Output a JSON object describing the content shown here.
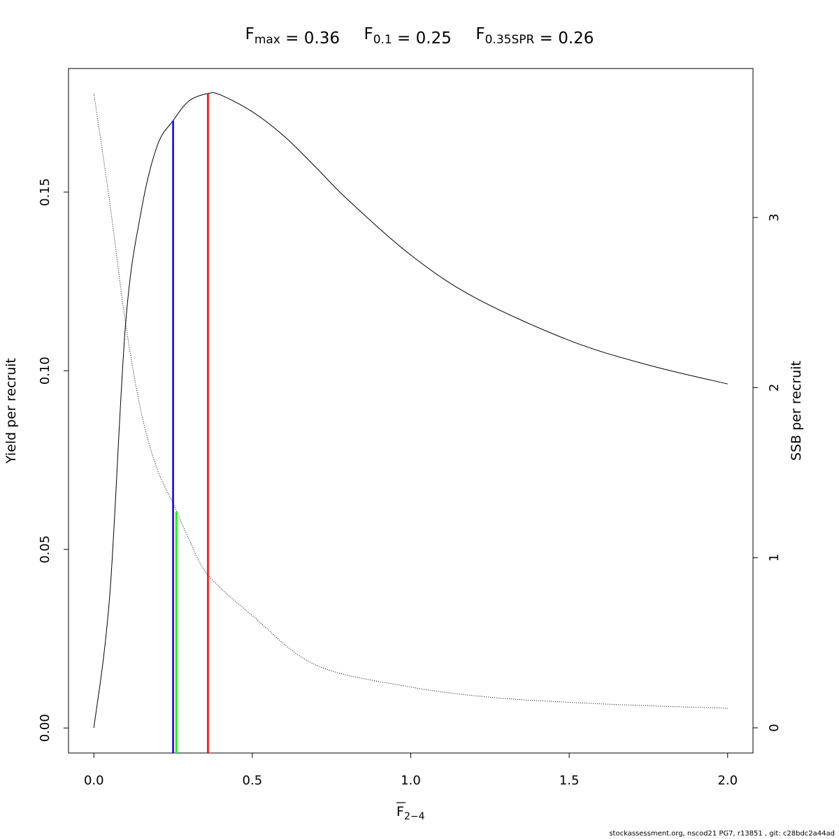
{
  "chart_data": {
    "type": "line",
    "title": {
      "parts": [
        {
          "main": "F",
          "sub": "max",
          "rest": " = 0.36"
        },
        {
          "main": "F",
          "sub": "0.1",
          "rest": " = 0.25"
        },
        {
          "main": "F",
          "sub": "0.35SPR",
          "rest": " = 0.26"
        }
      ]
    },
    "xlabel": {
      "main": "F",
      "sub": "2−4",
      "overline": true
    },
    "ylabel": "Yield per recruit",
    "y2label": "SSB per recruit",
    "xlim": [
      -0.08,
      2.08
    ],
    "ylim": [
      -0.007,
      0.1846
    ],
    "y2lim": [
      -0.148,
      3.876
    ],
    "xticks": [
      "0.0",
      "0.5",
      "1.0",
      "1.5",
      "2.0"
    ],
    "yticks": [
      "0.00",
      "0.05",
      "0.10",
      "0.15"
    ],
    "y2ticks": [
      "0",
      "1",
      "2",
      "3"
    ],
    "grid": false,
    "series": [
      {
        "axis": "left",
        "style": "solid",
        "color": "#000000",
        "x": [
          0,
          0.05,
          0.1,
          0.15,
          0.2,
          0.25,
          0.3,
          0.36,
          0.4,
          0.5,
          0.6,
          0.7,
          0.8,
          1.0,
          1.2,
          1.5,
          1.75,
          2.0
        ],
        "y": [
          0,
          0.037,
          0.113,
          0.145,
          0.163,
          0.17,
          0.1755,
          0.1776,
          0.1772,
          0.1725,
          0.1657,
          0.157,
          0.148,
          0.1324,
          0.1206,
          0.1085,
          0.1016,
          0.0963
        ]
      },
      {
        "axis": "right",
        "style": "dotted",
        "color": "#000000",
        "x": [
          0,
          0.05,
          0.1,
          0.15,
          0.2,
          0.25,
          0.3,
          0.36,
          0.5,
          0.7,
          1.0,
          1.25,
          1.5,
          1.75,
          2.0
        ],
        "y": [
          3.73,
          3.09,
          2.38,
          1.85,
          1.52,
          1.32,
          1.11,
          0.9,
          0.66,
          0.37,
          0.24,
          0.18,
          0.15,
          0.13,
          0.115
        ]
      }
    ],
    "reference_lines": [
      {
        "x": 0.25,
        "top": 0.17,
        "axis": "left",
        "color": "#0000ff"
      },
      {
        "x": 0.26,
        "top": 1.27,
        "axis": "right",
        "color": "#00ff00"
      },
      {
        "x": 0.36,
        "top": 0.1776,
        "axis": "left",
        "color": "#ff0000"
      }
    ]
  },
  "footer": "stockassessment.org, nscod21  PG7, r13851 , git: c28bdc2a44ad"
}
